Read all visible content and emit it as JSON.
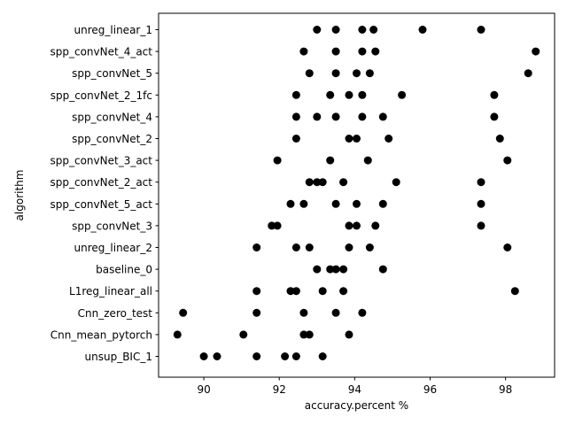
{
  "chart_data": {
    "type": "scatter",
    "xlabel": "accuracy.percent %",
    "ylabel": "algorithm",
    "xlim": [
      88.8,
      99.3
    ],
    "xticks": [
      90,
      92,
      94,
      96,
      98
    ],
    "grid": false,
    "marker_color": "#000000",
    "categories": [
      "unreg_linear_1",
      "spp_convNet_4_act",
      "spp_convNet_5",
      "spp_convNet_2_1fc",
      "spp_convNet_4",
      "spp_convNet_2",
      "spp_convNet_3_act",
      "spp_convNet_2_act",
      "spp_convNet_5_act",
      "spp_convNet_3",
      "unreg_linear_2",
      "baseline_0",
      "L1reg_linear_all",
      "Cnn_zero_test",
      "Cnn_mean_pytorch",
      "unsup_BIC_1"
    ],
    "points": [
      {
        "category": "unreg_linear_1",
        "x": [
          93.0,
          93.5,
          94.2,
          94.5,
          95.8,
          97.35
        ]
      },
      {
        "category": "spp_convNet_4_act",
        "x": [
          92.65,
          93.5,
          94.2,
          94.55,
          98.8
        ]
      },
      {
        "category": "spp_convNet_5",
        "x": [
          92.8,
          93.5,
          94.05,
          94.4,
          98.6
        ]
      },
      {
        "category": "spp_convNet_2_1fc",
        "x": [
          92.45,
          93.35,
          93.85,
          94.2,
          95.25,
          97.7
        ]
      },
      {
        "category": "spp_convNet_4",
        "x": [
          92.45,
          93.0,
          93.5,
          94.2,
          94.75,
          97.7
        ]
      },
      {
        "category": "spp_convNet_2",
        "x": [
          92.45,
          93.85,
          94.05,
          94.9,
          97.85
        ]
      },
      {
        "category": "spp_convNet_3_act",
        "x": [
          91.95,
          93.35,
          94.35,
          98.05
        ]
      },
      {
        "category": "spp_convNet_2_act",
        "x": [
          92.8,
          93.0,
          93.15,
          93.7,
          95.1,
          97.35
        ]
      },
      {
        "category": "spp_convNet_5_act",
        "x": [
          92.3,
          92.65,
          93.5,
          94.05,
          94.75,
          97.35
        ]
      },
      {
        "category": "spp_convNet_3",
        "x": [
          91.8,
          91.95,
          93.85,
          94.05,
          94.55,
          97.35
        ]
      },
      {
        "category": "unreg_linear_2",
        "x": [
          91.4,
          92.45,
          92.8,
          93.85,
          94.4,
          98.05
        ]
      },
      {
        "category": "baseline_0",
        "x": [
          93.0,
          93.35,
          93.5,
          93.7,
          94.75
        ]
      },
      {
        "category": "L1reg_linear_all",
        "x": [
          91.4,
          92.3,
          92.45,
          93.15,
          93.7,
          98.25
        ]
      },
      {
        "category": "Cnn_zero_test",
        "x": [
          89.45,
          91.4,
          92.65,
          93.5,
          94.2
        ]
      },
      {
        "category": "Cnn_mean_pytorch",
        "x": [
          89.3,
          91.05,
          92.65,
          92.8,
          93.85
        ]
      },
      {
        "category": "unsup_BIC_1",
        "x": [
          90.0,
          90.35,
          91.4,
          92.15,
          92.45,
          93.15
        ]
      }
    ]
  }
}
